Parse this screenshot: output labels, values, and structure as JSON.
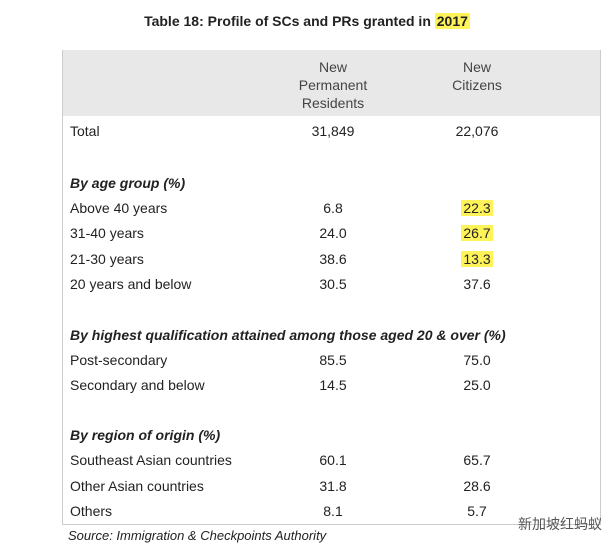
{
  "title": {
    "text": "Table 18: Profile of SCs and PRs granted in",
    "highlight": "2017"
  },
  "table": {
    "columns": [
      "New Permanent Residents",
      "New Citizens"
    ],
    "total": {
      "label": "Total",
      "values": [
        "31,849",
        "22,076"
      ]
    },
    "sections": [
      {
        "heading": "By age group (%)",
        "rows": [
          {
            "label": "Above 40 years",
            "values": [
              "6.8",
              "22.3"
            ]
          },
          {
            "label": "31-40 years",
            "values": [
              "24.0",
              "26.7"
            ]
          },
          {
            "label": "21-30 years",
            "values": [
              "38.6",
              "13.3"
            ]
          },
          {
            "label": "20 years and below",
            "values": [
              "30.5",
              "37.6"
            ]
          }
        ]
      },
      {
        "heading": "By highest qualification attained among those aged 20 & over (%)",
        "rows": [
          {
            "label": "Post-secondary",
            "values": [
              "85.5",
              "75.0"
            ]
          },
          {
            "label": "Secondary and below",
            "values": [
              "14.5",
              "25.0"
            ]
          }
        ]
      },
      {
        "heading": "By region of origin (%)",
        "rows": [
          {
            "label": "Southeast Asian countries",
            "values": [
              "60.1",
              "65.7"
            ]
          },
          {
            "label": "Other Asian countries",
            "values": [
              "31.8",
              "28.6"
            ]
          },
          {
            "label": "Others",
            "values": [
              "8.1",
              "5.7"
            ]
          }
        ]
      }
    ],
    "source": "Source: Immigration & Checkpoints Authority"
  },
  "watermark": "新加坡红蚂蚁"
}
